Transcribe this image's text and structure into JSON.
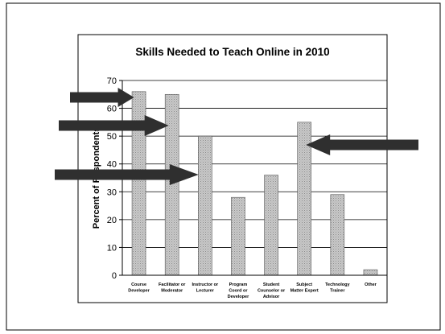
{
  "chart_data": {
    "type": "bar",
    "title": "Skills Needed to Teach Online in 2010",
    "xlabel": "",
    "ylabel": "Percent of Respondents",
    "ylim": [
      0,
      70
    ],
    "yticks": [
      0,
      10,
      20,
      30,
      40,
      50,
      60,
      70
    ],
    "grid": true,
    "legend": "none",
    "categories": [
      [
        "Course",
        "Developer"
      ],
      [
        "Facilitator or",
        "Moderator"
      ],
      [
        "Instructor or",
        "Lecturer"
      ],
      [
        "Program",
        "Coord or",
        "Developer"
      ],
      [
        "Student",
        "Counselor or",
        "Advisor"
      ],
      [
        "Subject",
        "Matter Expert"
      ],
      [
        "Technology",
        "Trainer"
      ],
      [
        "Other"
      ]
    ],
    "values": [
      66,
      65,
      50,
      28,
      36,
      55,
      29,
      2
    ],
    "bar_color": "#b8b8b8",
    "highlight_arrows": {
      "point_to_categories": [
        "Course Developer",
        "Facilitator or Moderator",
        "Instructor or Lecturer",
        "Subject Matter Expert"
      ],
      "color": "#2f2f2f"
    }
  }
}
